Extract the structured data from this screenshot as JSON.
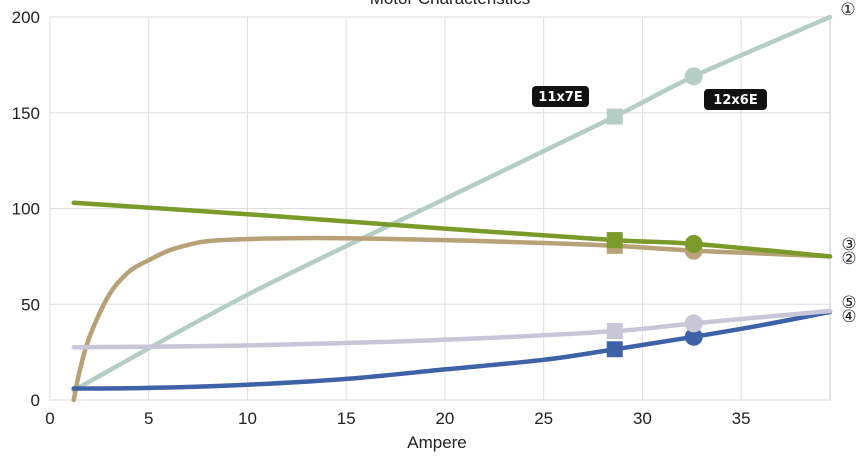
{
  "chart_data": {
    "type": "line",
    "title": "Motor Characteristics",
    "xlabel": "Ampere",
    "ylabel": "",
    "xlim": [
      0,
      39.5
    ],
    "ylim": [
      0,
      200
    ],
    "x_ticks": [
      "0",
      "5",
      "10",
      "15",
      "20",
      "25",
      "30",
      "35"
    ],
    "y_ticks": [
      "0",
      "50",
      "100",
      "150",
      "200"
    ],
    "grid": true,
    "series": [
      {
        "name": "①",
        "color": "#b4cdc5",
        "points": [
          [
            1.2,
            5
          ],
          [
            10,
            55
          ],
          [
            20,
            105
          ],
          [
            28.6,
            148
          ],
          [
            32.6,
            169
          ],
          [
            39.5,
            200
          ]
        ]
      },
      {
        "name": "②",
        "color": "#b8a176",
        "points": [
          [
            1.2,
            0
          ],
          [
            1.5,
            15
          ],
          [
            2,
            33
          ],
          [
            3,
            55
          ],
          [
            4,
            67
          ],
          [
            5,
            73
          ],
          [
            6,
            78
          ],
          [
            7,
            81
          ],
          [
            8,
            83
          ],
          [
            10,
            84
          ],
          [
            12,
            84.5
          ],
          [
            15,
            84.5
          ],
          [
            20,
            83.5
          ],
          [
            25,
            82
          ],
          [
            28.6,
            80.5
          ],
          [
            32.6,
            78
          ],
          [
            36,
            76.5
          ],
          [
            39.5,
            75
          ]
        ]
      },
      {
        "name": "③",
        "color": "#7a9a2a",
        "points": [
          [
            1.2,
            103
          ],
          [
            10,
            97
          ],
          [
            20,
            89.5
          ],
          [
            28.6,
            83.5
          ],
          [
            32.6,
            81.5
          ],
          [
            39.5,
            75
          ]
        ]
      },
      {
        "name": "④",
        "color": "#3d62a8",
        "points": [
          [
            1.2,
            6
          ],
          [
            5,
            6.3
          ],
          [
            10,
            8
          ],
          [
            15,
            11
          ],
          [
            20,
            16
          ],
          [
            25,
            21
          ],
          [
            28.6,
            26.5
          ],
          [
            32.6,
            33
          ],
          [
            36,
            39
          ],
          [
            39.5,
            46
          ]
        ]
      },
      {
        "name": "⑤",
        "color": "#c9c6d8",
        "points": [
          [
            1.2,
            27.5
          ],
          [
            10,
            28.5
          ],
          [
            20,
            31.5
          ],
          [
            28.6,
            36
          ],
          [
            32.6,
            40
          ],
          [
            39.5,
            46.5
          ]
        ]
      }
    ],
    "markers": [
      {
        "label": "11x7E",
        "shape": "square",
        "x": 28.6
      },
      {
        "label": "12x6E",
        "shape": "circle",
        "x": 32.6
      }
    ]
  }
}
